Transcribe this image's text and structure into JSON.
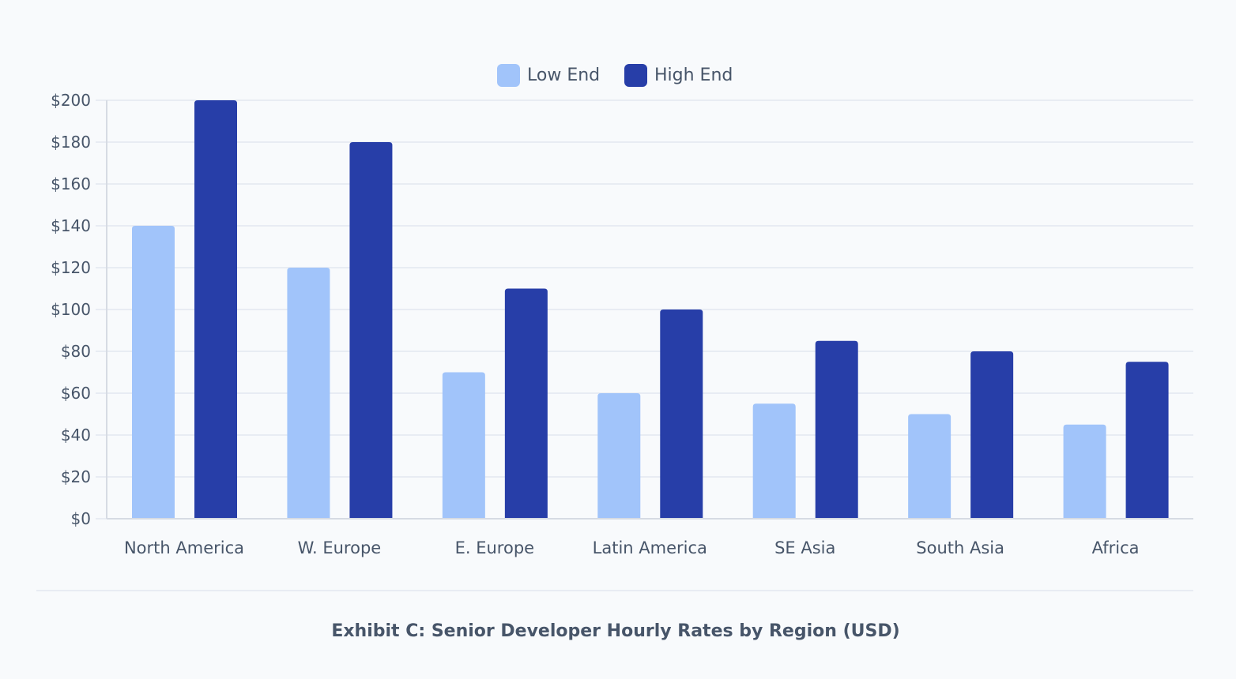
{
  "chart_data": {
    "type": "bar",
    "title": "",
    "caption": "Exhibit C: Senior Developer Hourly Rates by Region (USD)",
    "categories": [
      "North America",
      "W. Europe",
      "E. Europe",
      "Latin America",
      "SE Asia",
      "South Asia",
      "Africa"
    ],
    "series": [
      {
        "name": "Low End",
        "color": "#a1c4fa",
        "values": [
          140,
          120,
          70,
          60,
          55,
          50,
          45
        ]
      },
      {
        "name": "High End",
        "color": "#273ea8",
        "values": [
          200,
          180,
          110,
          100,
          85,
          80,
          75
        ]
      }
    ],
    "ylim": [
      0,
      200
    ],
    "yticks": [
      0,
      20,
      40,
      60,
      80,
      100,
      120,
      140,
      160,
      180,
      200
    ],
    "ytick_prefix": "$",
    "grid": true,
    "legend": "top-center"
  }
}
